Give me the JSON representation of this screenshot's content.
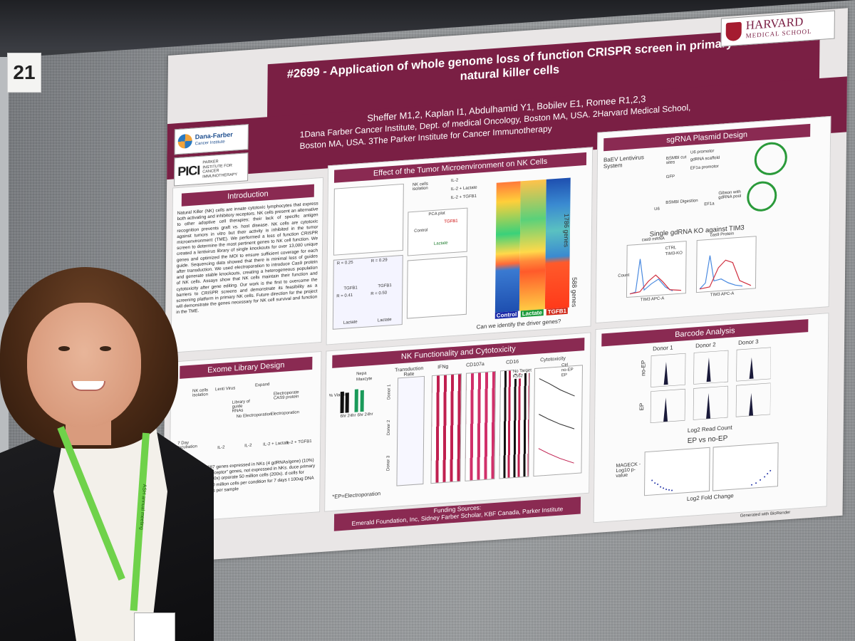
{
  "board_number": "21",
  "poster": {
    "title": "#2699 - Application of whole genome loss of function CRISPR screen in primary natural killer cells",
    "authors": "Sheffer M1,2, Kaplan I1, Abdulhamid Y1, Bobilev E1, Romee R1,2,3",
    "affiliations": "1Dana Farber Cancer Institute, Dept. of medical Oncology, Boston MA, USA. 2Harvard Medical School, Boston MA, USA. 3The Parker Institute for Cancer Immunotherapy",
    "logos": {
      "dfci_name": "Dana-Farber",
      "dfci_sub": "Cancer Institute",
      "pici_mark": "PICI",
      "pici_text": "PARKER INSTITUTE FOR CANCER IMMUNOTHERAPY",
      "harvard_name": "HARVARD",
      "harvard_sub": "MEDICAL SCHOOL"
    },
    "sections": {
      "introduction": {
        "title": "Introduction",
        "text": "Natural Killer (NK) cells are innate cytotoxic lymphocytes that express both activating and inhibitory receptors. NK cells present an alternative to other adoptive cell therapies; their lack of specific antigen recognition prevents graft vs. host disease. NK cells are cytotoxic against tumors in vitro but their activity is inhibited in the tumor microenvironment (TME). We performed a loss of function CRISPR screen to determine the most pertinent genes to NK cell function. We created a lentivirus library of single knockouts for over 13,000 unique genes and optimized the MOI to ensure sufficient coverage for each guide. Sequencing data showed that there is minimal loss of guides after transduction. We used electroporation to introduce Cas9 protein and generate stable knockouts, creating a heterogeneous population of NK cells. Assays show that NK cells maintain their function and cytotoxicity after gene editing. Our work is the first to overcome the barriers to CRISPR screens and demonstrate its feasibility as a screening platform in primary NK cells. Future direction for the project will demonstrate the genes necessary for NK cell survival and function in the TME."
      },
      "tme": {
        "title": "Effect of the Tumor Microenvironment on NK Cells",
        "nk_isolation": "NK cells isolation",
        "conditions": [
          "IL-2",
          "IL-2 + Lactate",
          "IL-2 + TGFB1"
        ],
        "pca_label": "PCA plot",
        "pca_points": [
          "Control",
          "Lactate",
          "TGFB1"
        ],
        "heatmap_genes_top": "1786 genes",
        "heatmap_genes_bottom": "588 genes",
        "heatmap_legend": [
          "Control",
          "Lactate",
          "TGFB1"
        ],
        "question": "Can we identify the driver genes?",
        "r_values": [
          "R = 0.25",
          "R = 0.29",
          "R = 0.41",
          "R = 0.50"
        ],
        "axis_labels": [
          "TGFB1",
          "TGFB1",
          "Lactate",
          "Lactate"
        ]
      },
      "sgrna": {
        "title": "sgRNA Plasmid Design",
        "system": "BaEV Lentivirus System",
        "labels": [
          "U6 promotor",
          "gdRNA scaffold",
          "EF1a promotor",
          "BSMBI cut sites",
          "GFP",
          "BSMBI Digestion",
          "Gibson with gdRNA pool",
          "U6",
          "EF1a"
        ],
        "ko_title": "Single gdRNA KO against TIM3",
        "plot1_title": "cas9 mRNA",
        "plot2_title": "cas9 Protein",
        "legend": [
          "CTRL",
          "TIM3-KO"
        ],
        "xlabel": "TIM3 APC-A",
        "ylabel": "Count"
      },
      "exome": {
        "title": "Exome Library Design",
        "labels": [
          "NK cells isolation",
          "Library of guide RNAs",
          "Lenti Virus",
          "Expand",
          "Electroporate CAS9 protein",
          "No Electroporation",
          "Electroporation",
          "7 Day Incubation",
          "IL-2",
          "IL-2",
          "IL-2 + Lactate",
          "IL-2 + TGFB1"
        ],
        "bullets": "548 gdRNAs/13,887 genes expressed in NKs (4 gdRNAs/gene) (10%) Control \"olfactory receptor\" genes, not expressed in NKs. duce primary NK cells at 20% (100x) orporate 50 million cells (200x). d cells for another week ate 40 million cells per condition for 7 days t 100ug DNA ince 40 million reads per sample"
      },
      "nk_function": {
        "title": "NK Functionality and Cytotoxicity",
        "bar_legend": [
          "Nepa",
          "Maxcyte"
        ],
        "columns": [
          "Transduction Rate",
          "IFNg",
          "CD107a",
          "CD16",
          "Cytotoxicity"
        ],
        "donors": [
          "Donor 1",
          "Donor 2",
          "Donor 3"
        ],
        "viability_ylabel": "% Viability",
        "time_labels": [
          "6hr",
          "24hr",
          "6hr",
          "24hr"
        ],
        "cyto_legend": [
          "Ctrl",
          "no-EP",
          "EP"
        ],
        "cd16_legend": [
          "No Target",
          "K562"
        ],
        "note": "*EP=Electroporation"
      },
      "barcode": {
        "title": "Barcode Analysis",
        "donors": [
          "Donor 1",
          "Donor 2",
          "Donor 3"
        ],
        "row_labels": [
          "no-EP",
          "EP"
        ],
        "xlabel": "Log2 Read Count",
        "volcano_title": "EP vs no-EP",
        "volcano_ylabel": "MAGECK -Log10 p-value",
        "volcano_xlabel": "Log2 Fold Change"
      },
      "funding": {
        "title": "Funding Sources:",
        "text": "Emerald Foundation, Inc, Sidney Farber Scholar, KBF Canada, Parker Institute"
      },
      "biorender": "Generated with BioRender"
    }
  },
  "lanyard_text": "ASH annual meeting",
  "colors": {
    "poster_maroon": "#7a1f44",
    "panel_title": "#8a2a52",
    "lanyard_green": "#6fd24a",
    "board_grey": "#8f9295"
  }
}
